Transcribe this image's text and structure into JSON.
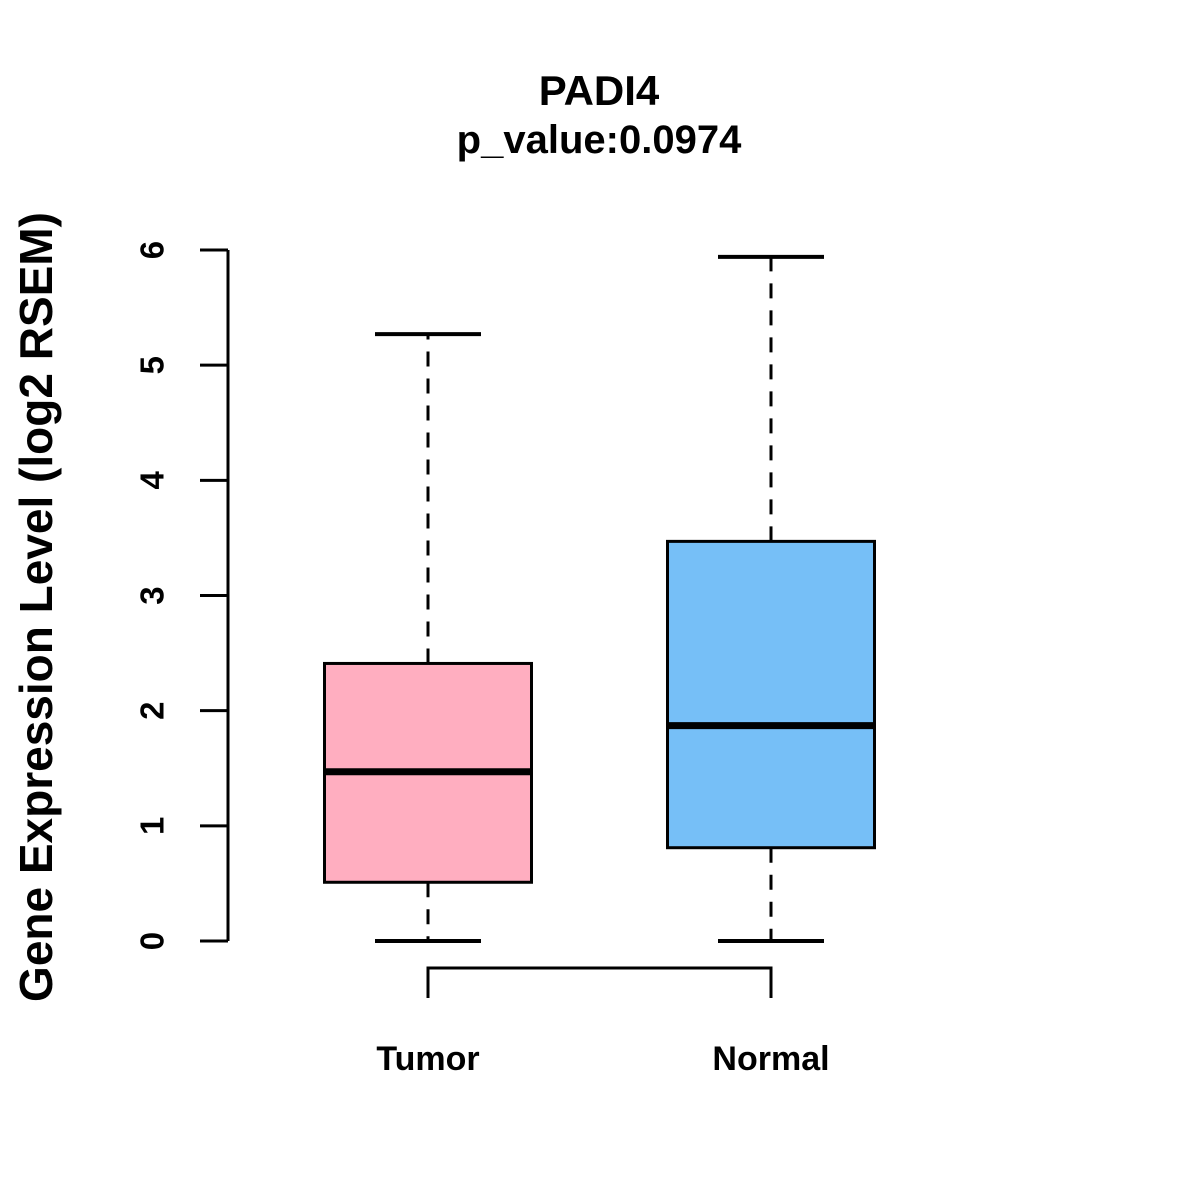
{
  "title": "PADI4",
  "subtitle": "p_value:0.0974",
  "p_value": "0.0974",
  "ylabel": "Gene Expression Level (log2 RSEM)",
  "chart_data": {
    "type": "boxplot",
    "title": "PADI4",
    "subtitle": "p_value:0.0974",
    "ylabel": "Gene Expression Level (log2 RSEM)",
    "xlabel": "",
    "categories": [
      "Tumor",
      "Normal"
    ],
    "series": [
      {
        "name": "Tumor",
        "min": 0.0,
        "q1": 0.51,
        "median": 1.47,
        "q3": 2.41,
        "max": 5.27,
        "fill": "#FFAEC0"
      },
      {
        "name": "Normal",
        "min": 0.0,
        "q1": 0.81,
        "median": 1.87,
        "q3": 3.47,
        "max": 5.94,
        "fill": "#76BFF7"
      }
    ],
    "ylim": [
      0,
      6
    ],
    "yticks": [
      0,
      1,
      2,
      3,
      4,
      5,
      6
    ],
    "grid": false,
    "legend": "none",
    "whisker_style": "dashed",
    "comparison_bracket": {
      "from": "Tumor",
      "to": "Normal"
    },
    "line_color": "#000000",
    "background": "#FFFFFF"
  }
}
